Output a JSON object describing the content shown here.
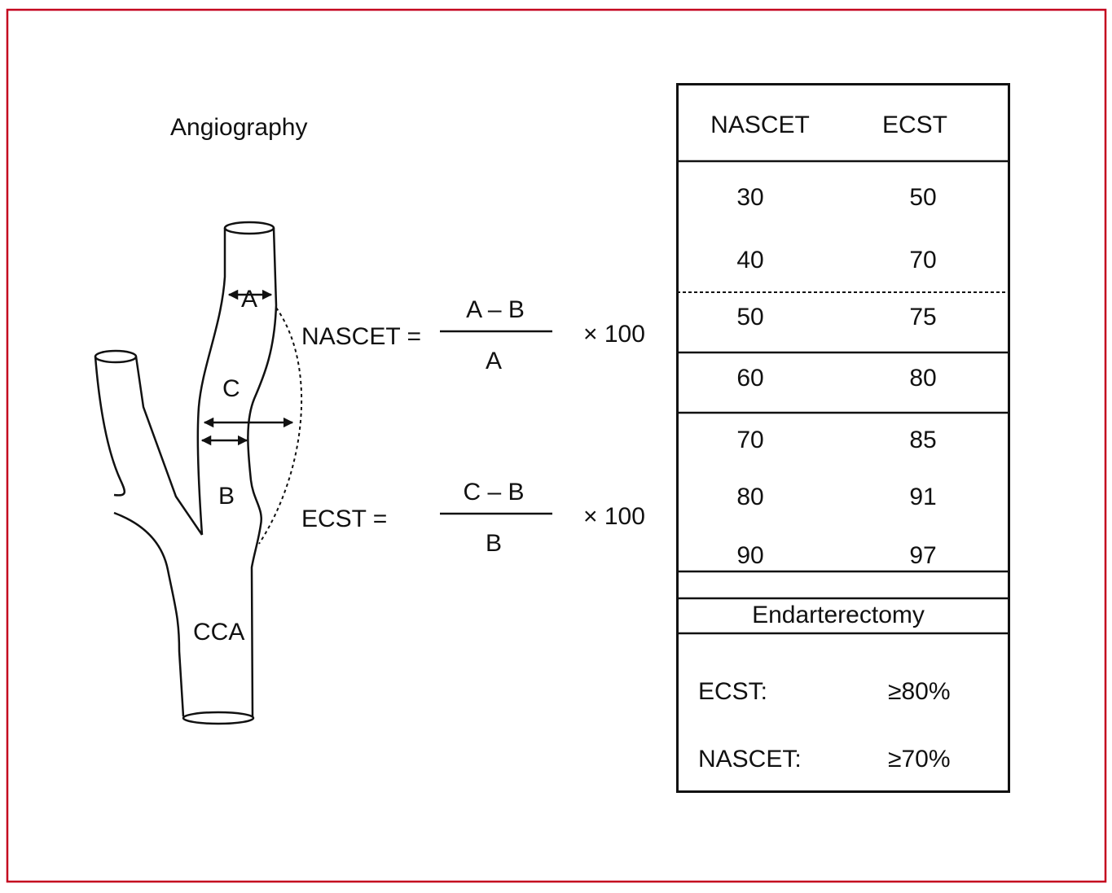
{
  "title": "Angiography",
  "vessel_labels": {
    "a": "A",
    "b": "B",
    "c": "C",
    "cca": "CCA"
  },
  "formulas": {
    "nascet": {
      "label": "NASCET =",
      "numerator": "A – B",
      "denominator": "A",
      "multiplier": "× 100"
    },
    "ecst": {
      "label": "ECST =",
      "numerator": "C – B",
      "denominator": "B",
      "multiplier": "× 100"
    }
  },
  "table": {
    "headers": [
      "NASCET",
      "ECST"
    ],
    "rows": [
      [
        "30",
        "50"
      ],
      [
        "40",
        "70"
      ],
      [
        "50",
        "75"
      ],
      [
        "60",
        "80"
      ],
      [
        "70",
        "85"
      ],
      [
        "80",
        "91"
      ],
      [
        "90",
        "97"
      ]
    ],
    "section_title": "Endarterectomy",
    "thresholds": [
      {
        "label": "ECST:",
        "value": "≥80%"
      },
      {
        "label": "NASCET:",
        "value": "≥70%"
      }
    ]
  },
  "colors": {
    "frame": "#c4001e",
    "line": "#111111"
  }
}
